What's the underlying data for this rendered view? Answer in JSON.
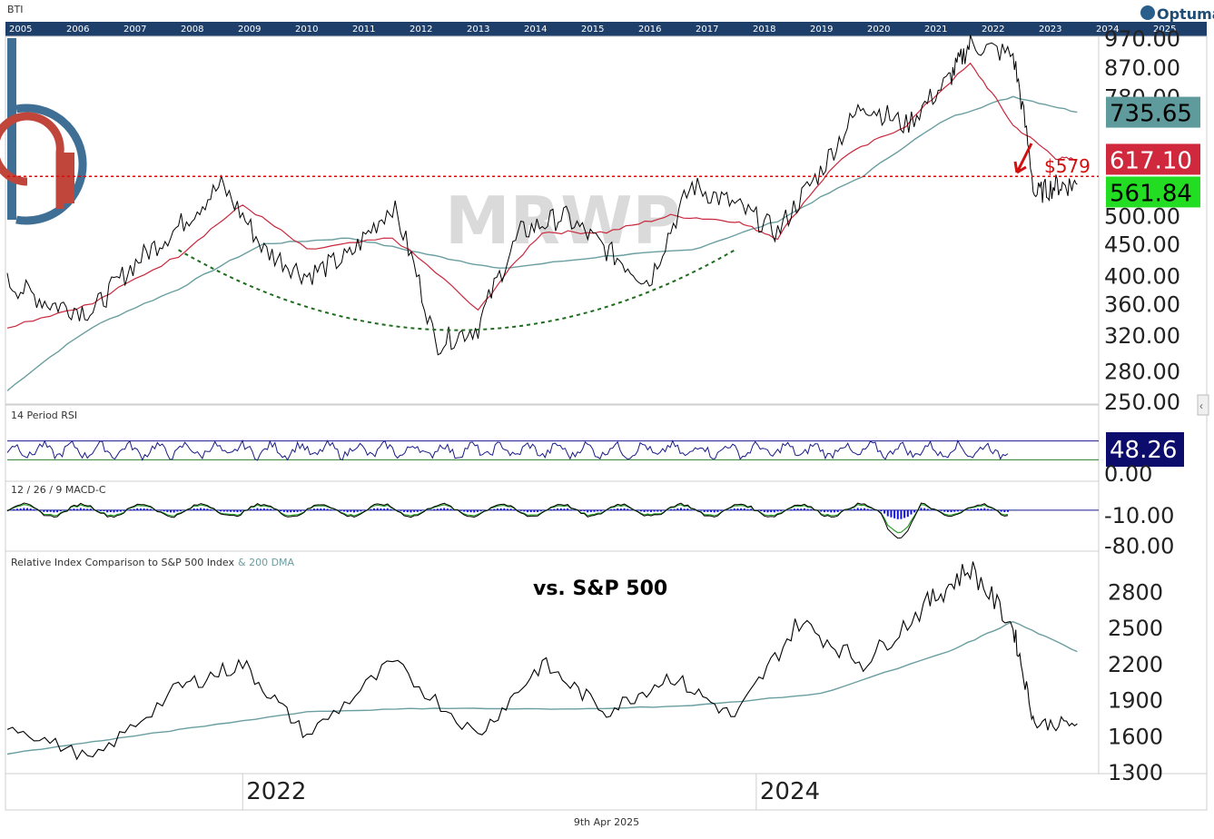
{
  "header": {
    "symbol": "BTI",
    "brand": "Optuma",
    "timeline_years": [
      "2005",
      "2006",
      "2007",
      "2008",
      "2009",
      "2010",
      "2011",
      "2012",
      "2013",
      "2014",
      "2015",
      "2016",
      "2017",
      "2018",
      "2019",
      "2020",
      "2021",
      "2022",
      "2023",
      "2024",
      "2025"
    ]
  },
  "watermark": "MRWP",
  "footer": {
    "date": "9th Apr 2025"
  },
  "colors": {
    "price": "#000000",
    "fast_ma": "#c8283c",
    "slow_ma": "#6a9ea0",
    "green_arc": "#1e6b1e",
    "level_line": "#d01010",
    "rsi_line": "#1a1a8a",
    "macd_hist": "#1010e0",
    "macd_signal": "#2e9e2e",
    "badge_slow": "#5f9a9c",
    "badge_fast": "#d0283c",
    "badge_price": "#22dd22",
    "badge_rsi": "#0c0c6c",
    "logo_blue": "#3f6f94",
    "logo_red": "#c0453a"
  },
  "chart_data": [
    {
      "pane": "price",
      "type": "line",
      "title": "",
      "ylabel": "",
      "y_scale": "log",
      "ylim": [
        250,
        970
      ],
      "y_ticks": [
        "970.00",
        "870.00",
        "780.00",
        "500.00",
        "450.00",
        "400.00",
        "360.00",
        "320.00",
        "280.00",
        "250.00"
      ],
      "x_ticks": [
        "2022",
        "2024"
      ],
      "x_range": [
        "2021-02",
        "2025-05"
      ],
      "series": [
        {
          "role": "price",
          "x": [
            "2021-02",
            "2021-04",
            "2021-06",
            "2021-08",
            "2021-10",
            "2021-12",
            "2022-02",
            "2022-04",
            "2022-06",
            "2022-08",
            "2022-10",
            "2022-12",
            "2023-02",
            "2023-04",
            "2023-06",
            "2023-08",
            "2023-10",
            "2023-12",
            "2024-02",
            "2024-04",
            "2024-06",
            "2024-08",
            "2024-10",
            "2024-11",
            "2025-01",
            "2025-02",
            "2025-03",
            "2025-04"
          ],
          "y": [
            390,
            360,
            350,
            420,
            480,
            560,
            440,
            400,
            430,
            520,
            310,
            330,
            470,
            500,
            440,
            390,
            560,
            520,
            470,
            590,
            760,
            700,
            830,
            950,
            910,
            540,
            560,
            561.84
          ]
        },
        {
          "role": "fast_ma",
          "x": [
            "2021-02",
            "2021-06",
            "2021-10",
            "2022-01",
            "2022-04",
            "2022-08",
            "2022-12",
            "2023-03",
            "2023-06",
            "2023-09",
            "2023-12",
            "2024-02",
            "2024-05",
            "2024-08",
            "2024-11",
            "2025-01",
            "2025-03",
            "2025-04"
          ],
          "y": [
            330,
            360,
            430,
            520,
            440,
            460,
            350,
            470,
            470,
            500,
            490,
            460,
            620,
            700,
            880,
            700,
            620,
            617.1
          ]
        },
        {
          "role": "slow_ma",
          "x": [
            "2021-02",
            "2021-06",
            "2021-10",
            "2022-02",
            "2022-06",
            "2022-10",
            "2023-01",
            "2023-06",
            "2023-10",
            "2024-02",
            "2024-06",
            "2024-10",
            "2025-01",
            "2025-04"
          ],
          "y": [
            260,
            330,
            380,
            450,
            460,
            430,
            410,
            430,
            440,
            490,
            580,
            720,
            780,
            735.65
          ]
        }
      ],
      "annotations": {
        "level_label": "$579",
        "level_value": 579,
        "arc": "rounded-bottom"
      },
      "badges": {
        "slow_ma": "735.65",
        "fast_ma": "617.10",
        "price": "561.84"
      }
    },
    {
      "pane": "rsi",
      "type": "line",
      "title": "14 Period RSI",
      "series": [
        {
          "role": "rsi"
        }
      ],
      "ylim": [
        0,
        100
      ],
      "bands": [
        70,
        30
      ],
      "y_ticks": [
        "0.00"
      ],
      "last": "48.26"
    },
    {
      "pane": "macd",
      "type": "line",
      "title": "12 / 26 / 9 MACD-C",
      "ylim": [
        -85,
        35
      ],
      "y_ticks": [
        "-10.00",
        "-80.00"
      ]
    },
    {
      "pane": "relative",
      "type": "line",
      "title": "Relative Index Comparison to S&P 500 Index",
      "title_suffix": "& 200 DMA",
      "annotation": "vs. S&P 500",
      "ylim": [
        1300,
        3000
      ],
      "y_ticks": [
        "2800",
        "2500",
        "2200",
        "1900",
        "1600",
        "1300"
      ],
      "series": [
        {
          "role": "relative",
          "x": [
            "2021-02",
            "2021-06",
            "2021-10",
            "2022-01",
            "2022-04",
            "2022-08",
            "2022-12",
            "2023-03",
            "2023-06",
            "2023-09",
            "2023-12",
            "2024-03",
            "2024-06",
            "2024-09",
            "2024-11",
            "2025-01",
            "2025-02",
            "2025-04"
          ],
          "y": [
            1700,
            1400,
            2000,
            2200,
            1600,
            2200,
            1600,
            2200,
            1800,
            2100,
            1750,
            2550,
            2200,
            2700,
            3000,
            2500,
            1700,
            1700
          ]
        },
        {
          "role": "relative_dma",
          "x": [
            "2021-02",
            "2021-06",
            "2021-10",
            "2022-04",
            "2022-10",
            "2023-04",
            "2023-10",
            "2024-04",
            "2024-10",
            "2025-01",
            "2025-04"
          ],
          "y": [
            1450,
            1550,
            1650,
            1800,
            1830,
            1820,
            1850,
            1950,
            2300,
            2550,
            2300
          ]
        }
      ]
    }
  ]
}
